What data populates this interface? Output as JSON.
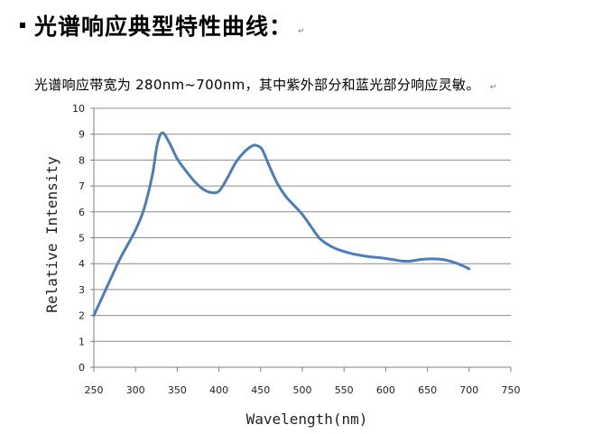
{
  "heading": {
    "text": "光谱响应典型特性曲线："
  },
  "description": {
    "text": "光谱响应带宽为 280nm~700nm，其中紫外部分和蓝光部分响应灵敏。"
  },
  "colors": {
    "line": "#4a7ebb",
    "grid": "#8c8c8c",
    "axis": "#7f7f7f"
  },
  "chart_data": {
    "type": "line",
    "title": "",
    "xlabel": "Wavelength(nm)",
    "ylabel": "Relative Intensity",
    "xlim": [
      250,
      750
    ],
    "ylim": [
      0,
      10
    ],
    "xticks": [
      250,
      300,
      350,
      400,
      450,
      500,
      550,
      600,
      650,
      700,
      750
    ],
    "yticks": [
      0,
      1,
      2,
      3,
      4,
      5,
      6,
      7,
      8,
      9,
      10
    ],
    "grid": "horizontal",
    "series": [
      {
        "x": [
          250,
          260,
          270,
          280,
          290,
          300,
          310,
          320,
          326,
          332,
          340,
          350,
          360,
          370,
          380,
          390,
          400,
          410,
          420,
          430,
          440,
          446,
          452,
          460,
          470,
          480,
          490,
          500,
          510,
          520,
          530,
          540,
          550,
          560,
          570,
          580,
          590,
          600,
          610,
          620,
          630,
          640,
          650,
          660,
          670,
          680,
          690,
          700
        ],
        "y": [
          2.0,
          2.7,
          3.4,
          4.1,
          4.7,
          5.3,
          6.1,
          7.4,
          8.6,
          9.05,
          8.7,
          8.05,
          7.6,
          7.2,
          6.9,
          6.75,
          6.8,
          7.3,
          7.9,
          8.3,
          8.55,
          8.55,
          8.4,
          7.8,
          7.1,
          6.6,
          6.25,
          5.9,
          5.45,
          5.0,
          4.75,
          4.58,
          4.47,
          4.38,
          4.32,
          4.27,
          4.24,
          4.2,
          4.15,
          4.1,
          4.1,
          4.15,
          4.18,
          4.18,
          4.15,
          4.07,
          3.95,
          3.8
        ]
      }
    ]
  }
}
